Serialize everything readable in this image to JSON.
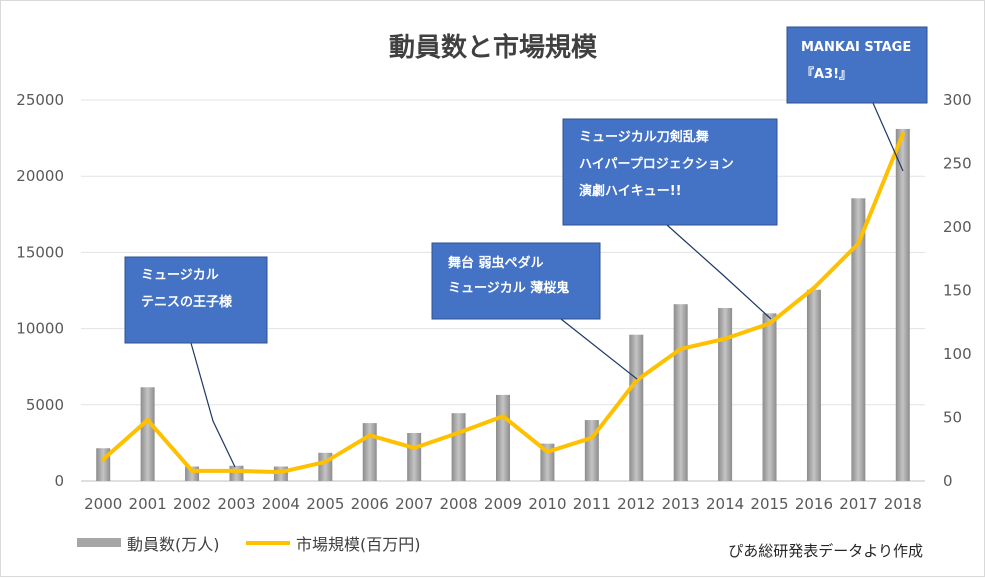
{
  "chart_data": {
    "type": "bar",
    "title": "動員数と市場規模",
    "categories": [
      "2000",
      "2001",
      "2002",
      "2003",
      "2004",
      "2005",
      "2006",
      "2007",
      "2008",
      "2009",
      "2010",
      "2011",
      "2012",
      "2013",
      "2014",
      "2015",
      "2016",
      "2017",
      "2018"
    ],
    "series": [
      {
        "name": "動員数(万人)",
        "type": "bar",
        "axis": "left",
        "color": "#a6a6a6",
        "values": [
          2150,
          6150,
          950,
          1000,
          950,
          1850,
          3800,
          3150,
          4450,
          5650,
          2450,
          4000,
          9600,
          11600,
          11350,
          11000,
          12550,
          18550,
          23100
        ]
      },
      {
        "name": "市場規模(百万円)",
        "type": "line",
        "axis": "right",
        "color": "#ffc000",
        "values": [
          17,
          48,
          8,
          8,
          7,
          15,
          36,
          26,
          38,
          51,
          23,
          34,
          79,
          104,
          112,
          124,
          152,
          187,
          273
        ]
      }
    ],
    "y_left": {
      "min": 0,
      "max": 25000,
      "ticks": [
        "0",
        "5000",
        "10000",
        "15000",
        "20000",
        "25000"
      ]
    },
    "y_right": {
      "min": 0,
      "max": 300,
      "ticks": [
        "0",
        "50",
        "100",
        "150",
        "200",
        "250",
        "300"
      ]
    },
    "grid": true,
    "legend_position": "bottom-left",
    "annotations": [
      {
        "lines": [
          "ミュージカル",
          "テニスの王子様"
        ],
        "year": "2003"
      },
      {
        "lines": [
          "舞台 弱虫ペダル",
          "ミュージカル 薄桜鬼"
        ],
        "year": "2012"
      },
      {
        "lines": [
          "ミュージカル刀剣乱舞",
          "ハイパープロジェクション",
          "演劇ハイキュー!!"
        ],
        "year": "2015"
      },
      {
        "lines": [
          "MANKAI STAGE",
          "『A3!』"
        ],
        "year": "2018"
      }
    ],
    "source": "ぴあ総研発表データより作成",
    "callout_color": "#4472c4"
  }
}
